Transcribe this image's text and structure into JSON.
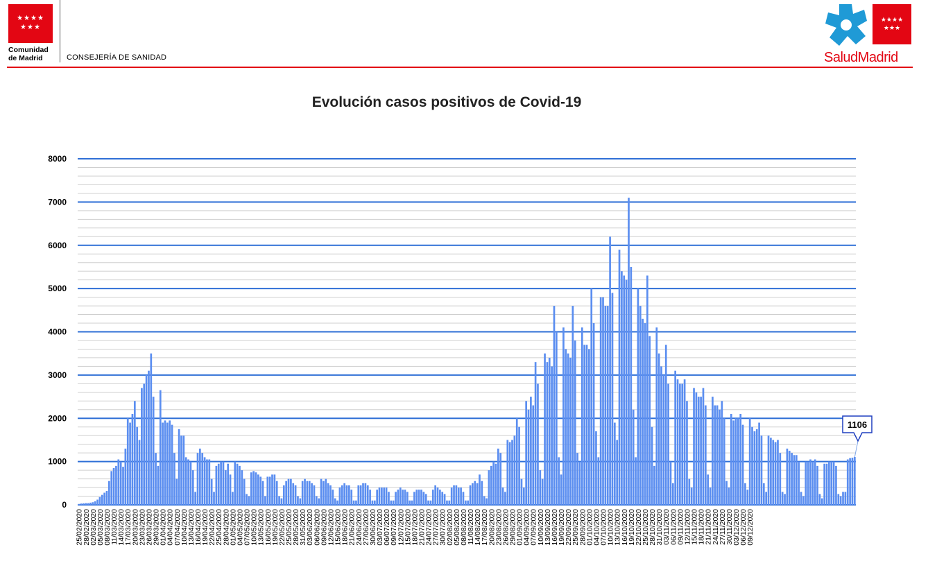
{
  "header": {
    "org_name_line1": "Comunidad",
    "org_name_line2": "de Madrid",
    "department": "CONSEJERÍA DE SANIDAD",
    "brand_part1": "Salud",
    "brand_part2": "Madrid",
    "brand_color": "#e30613",
    "cross_color": "#1f9ad6"
  },
  "chart_data": {
    "type": "bar",
    "title": "Evolución casos positivos de Covid-19",
    "xlabel": "",
    "ylabel": "",
    "ylim": [
      0,
      8000
    ],
    "yticks": [
      0,
      1000,
      2000,
      3000,
      4000,
      5000,
      6000,
      7000,
      8000
    ],
    "grid": true,
    "bar_color": "#5b8ef0",
    "grid_major_color": "#2f6fd6",
    "grid_minor_color": "#cfcfcf",
    "start_date": "25/02/2020",
    "tick_labels": [
      "25/02/2020",
      "28/02/2020",
      "02/03/2020",
      "05/03/2020",
      "08/03/2020",
      "11/03/2020",
      "14/03/2020",
      "17/03/2020",
      "20/03/2020",
      "23/03/2020",
      "26/03/2020",
      "29/03/2020",
      "01/04/2020",
      "04/04/2020",
      "07/04/2020",
      "10/04/2020",
      "13/04/2020",
      "16/04/2020",
      "19/04/2020",
      "22/04/2020",
      "25/04/2020",
      "28/04/2020",
      "01/05/2020",
      "04/05/2020",
      "07/05/2020",
      "10/05/2020",
      "13/05/2020",
      "16/05/2020",
      "19/05/2020",
      "22/05/2020",
      "25/05/2020",
      "28/05/2020",
      "31/05/2020",
      "03/06/2020",
      "06/06/2020",
      "09/06/2020",
      "12/06/2020",
      "15/06/2020",
      "18/06/2020",
      "21/06/2020",
      "24/06/2020",
      "27/06/2020",
      "30/06/2020",
      "03/07/2020",
      "06/07/2020",
      "09/07/2020",
      "12/07/2020",
      "15/07/2020",
      "18/07/2020",
      "21/07/2020",
      "24/07/2020",
      "27/07/2020",
      "30/07/2020",
      "02/08/2020",
      "05/08/2020",
      "08/08/2020",
      "11/08/2020",
      "14/08/2020",
      "17/08/2020",
      "20/08/2020",
      "23/08/2020",
      "26/08/2020",
      "29/08/2020",
      "01/09/2020",
      "04/09/2020",
      "07/09/2020",
      "10/09/2020",
      "13/09/2020",
      "16/09/2020",
      "19/09/2020",
      "22/09/2020",
      "25/09/2020",
      "28/09/2020",
      "01/10/2020",
      "04/10/2020",
      "07/10/2020",
      "10/10/2020",
      "13/10/2020",
      "16/10/2020",
      "19/10/2020",
      "22/10/2020",
      "25/10/2020",
      "28/10/2020",
      "31/10/2020",
      "03/11/2020",
      "06/11/2020",
      "09/11/2020",
      "12/11/2020",
      "15/11/2020",
      "18/11/2020",
      "21/11/2020",
      "24/11/2020",
      "27/11/2020",
      "30/11/2020",
      "03/12/2020",
      "06/12/2020",
      "09/12/2020"
    ],
    "values": [
      20,
      30,
      35,
      40,
      40,
      50,
      60,
      80,
      120,
      180,
      230,
      280,
      320,
      550,
      780,
      850,
      900,
      1050,
      1000,
      880,
      1300,
      2000,
      1900,
      2100,
      2400,
      1800,
      1500,
      2700,
      2800,
      3000,
      3100,
      3500,
      2500,
      1200,
      900,
      2650,
      1900,
      1950,
      1900,
      1950,
      1850,
      1200,
      600,
      1750,
      1600,
      1600,
      1100,
      1050,
      1000,
      800,
      300,
      1200,
      1300,
      1200,
      1100,
      1050,
      1050,
      600,
      300,
      900,
      950,
      1000,
      1000,
      800,
      950,
      700,
      300,
      1000,
      950,
      900,
      800,
      600,
      250,
      200,
      750,
      780,
      750,
      700,
      650,
      550,
      200,
      650,
      650,
      700,
      700,
      550,
      200,
      150,
      450,
      550,
      600,
      600,
      500,
      450,
      200,
      150,
      550,
      600,
      550,
      550,
      500,
      450,
      200,
      150,
      600,
      550,
      600,
      500,
      450,
      350,
      150,
      100,
      400,
      450,
      500,
      450,
      450,
      350,
      100,
      100,
      450,
      450,
      500,
      500,
      450,
      350,
      100,
      100,
      350,
      400,
      400,
      400,
      400,
      300,
      100,
      100,
      300,
      350,
      400,
      350,
      350,
      300,
      100,
      100,
      300,
      350,
      350,
      350,
      300,
      250,
      100,
      100,
      350,
      450,
      400,
      350,
      300,
      250,
      100,
      100,
      400,
      450,
      450,
      400,
      400,
      300,
      100,
      100,
      450,
      500,
      550,
      500,
      700,
      550,
      200,
      150,
      800,
      900,
      1000,
      950,
      1300,
      1200,
      400,
      300,
      1500,
      1450,
      1500,
      1600,
      2000,
      1800,
      600,
      400,
      2400,
      2200,
      2500,
      2300,
      3300,
      2800,
      800,
      600,
      3500,
      3300,
      3400,
      3200,
      4600,
      4000,
      1100,
      700,
      4100,
      3600,
      3500,
      3400,
      4600,
      3800,
      1200,
      1000,
      4100,
      3700,
      3700,
      3600,
      5000,
      4200,
      1700,
      1100,
      4800,
      4800,
      4600,
      4600,
      6200,
      4900,
      1900,
      1500,
      5900,
      5400,
      5300,
      5200,
      7100,
      5500,
      2200,
      1100,
      5000,
      4600,
      4300,
      4200,
      5300,
      3900,
      1800,
      900,
      4100,
      3500,
      3200,
      3000,
      3700,
      2800,
      1000,
      500,
      3100,
      2900,
      2800,
      2800,
      2900,
      2400,
      600,
      400,
      2700,
      2600,
      2500,
      2500,
      2700,
      2300,
      700,
      400,
      2500,
      2300,
      2300,
      2200,
      2400,
      2000,
      550,
      400,
      2100,
      1950,
      2000,
      2000,
      2100,
      1850,
      500,
      350,
      2000,
      1800,
      1700,
      1750,
      1900,
      1600,
      500,
      300,
      1600,
      1550,
      1500,
      1450,
      1500,
      1200,
      300,
      250,
      1300,
      1250,
      1200,
      1150,
      1150,
      1000,
      300,
      200,
      1000,
      1000,
      1050,
      1000,
      1050,
      900,
      250,
      150,
      950,
      950,
      1000,
      1000,
      1000,
      900,
      250,
      200,
      300,
      300,
      1050,
      1080,
      1090,
      1106
    ],
    "annotation": {
      "label": "1106",
      "value": 1106
    }
  }
}
